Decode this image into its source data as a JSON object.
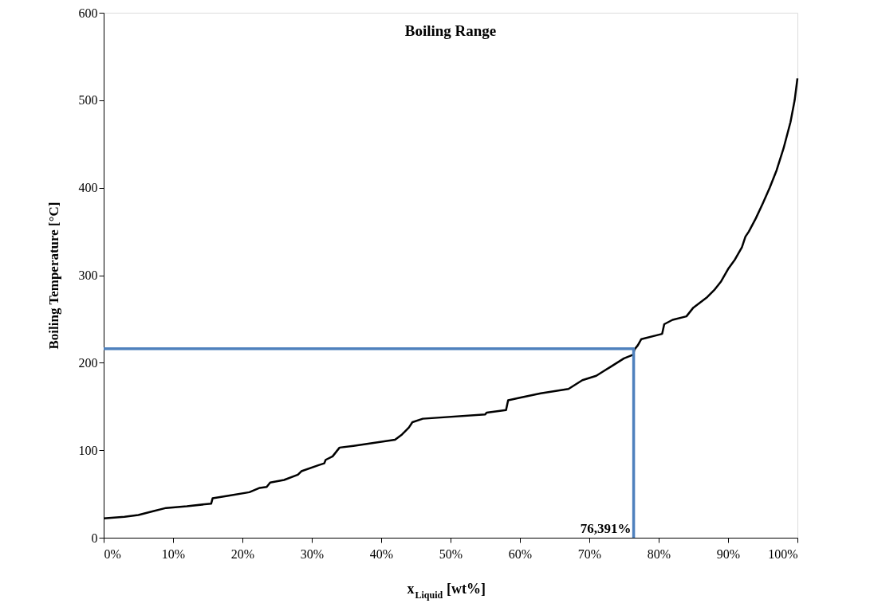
{
  "chart_data": {
    "type": "line",
    "title": "Boiling Range",
    "xlabel": "x$_{Liquid}$ [wt%]",
    "ylabel": "Boiling Temperature [°C]",
    "xlim": [
      0,
      100
    ],
    "ylim": [
      0,
      600
    ],
    "xticks": [
      {
        "value": 0,
        "label": "0%"
      },
      {
        "value": 10,
        "label": "10%"
      },
      {
        "value": 20,
        "label": "20%"
      },
      {
        "value": 30,
        "label": "30%"
      },
      {
        "value": 40,
        "label": "40%"
      },
      {
        "value": 50,
        "label": "50%"
      },
      {
        "value": 60,
        "label": "60%"
      },
      {
        "value": 70,
        "label": "70%"
      },
      {
        "value": 80,
        "label": "80%"
      },
      {
        "value": 90,
        "label": "90%"
      },
      {
        "value": 100,
        "label": "100%"
      }
    ],
    "yticks": [
      0,
      100,
      200,
      300,
      400,
      500,
      600
    ],
    "grid": false,
    "marker": "none",
    "line_style": "solid",
    "series": [
      {
        "color": "#000000",
        "x": [
          0,
          3,
          5,
          7,
          9,
          12,
          15.5,
          15.7,
          18,
          21,
          22.5,
          23.5,
          24,
          26,
          28,
          28.5,
          31,
          31.8,
          32,
          33,
          33.5,
          34,
          36,
          42,
          43,
          44,
          44.5,
          46,
          55,
          55.2,
          58,
          58.3,
          60,
          63,
          67,
          68,
          69,
          71,
          72,
          73,
          74,
          75,
          76.3,
          76.5,
          77,
          77.5,
          80.5,
          80.8,
          82,
          84,
          85,
          87,
          88,
          89,
          90,
          91,
          92,
          92.5,
          93,
          94,
          95,
          96,
          97,
          98,
          99,
          99.6,
          100
        ],
        "values": [
          22,
          24,
          26,
          30,
          34,
          36,
          39,
          45,
          48,
          52,
          57,
          58,
          63,
          66,
          72,
          76,
          83,
          85,
          89,
          93,
          98,
          103,
          105,
          112,
          118,
          126,
          132,
          136,
          141,
          143,
          146,
          157,
          160,
          165,
          170,
          175,
          180,
          185,
          190,
          195,
          200,
          205,
          209,
          215,
          220,
          227,
          233,
          244,
          249,
          253,
          263,
          275,
          283,
          293,
          307,
          318,
          332,
          344,
          350,
          365,
          382,
          400,
          420,
          445,
          475,
          500,
          525
        ]
      },
      {
        "color": "#4f81bd",
        "x": [
          0,
          76.391,
          76.391
        ],
        "values": [
          216,
          216,
          0
        ]
      }
    ],
    "annotations": [
      {
        "text": "76,391%",
        "x": 76.391,
        "y": 0
      }
    ]
  }
}
